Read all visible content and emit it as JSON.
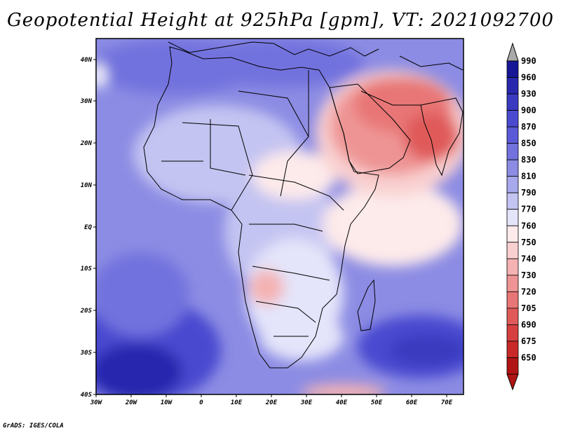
{
  "title": "Geopotential Height at 925hPa [gpm], VT: 2021092700",
  "credit": "GrADS: IGES/COLA",
  "lon_labels": [
    "30W",
    "20W",
    "10W",
    "0",
    "10E",
    "20E",
    "30E",
    "40E",
    "50E",
    "60E",
    "70E"
  ],
  "lat_labels": [
    "40N",
    "30N",
    "20N",
    "10N",
    "EQ",
    "10S",
    "20S",
    "30S",
    "40S"
  ],
  "legend": {
    "levels": [
      "990",
      "960",
      "930",
      "900",
      "870",
      "850",
      "830",
      "810",
      "790",
      "770",
      "760",
      "750",
      "740",
      "730",
      "720",
      "705",
      "690",
      "675",
      "650"
    ],
    "colors": [
      "#161696",
      "#2828ae",
      "#3a3ac0",
      "#4a4ad0",
      "#5a5ad8",
      "#7272de",
      "#8c8ce4",
      "#a8a8ec",
      "#c4c4f2",
      "#e4e4fa",
      "#fdeaea",
      "#f9d0d0",
      "#f4b2b2",
      "#ee9494",
      "#e87676",
      "#e05a5a",
      "#d64040",
      "#c82828",
      "#b01414"
    ]
  },
  "chart_data": {
    "type": "heatmap",
    "title": "Geopotential Height at 925hPa [gpm], VT: 2021092700",
    "variable": "Geopotential Height",
    "units": "gpm",
    "level": "925hPa",
    "valid_time": "2021092700",
    "lon_range": [
      -30,
      75
    ],
    "lat_range": [
      -40,
      45
    ],
    "colorbar_levels": [
      990,
      960,
      930,
      900,
      870,
      850,
      830,
      810,
      790,
      770,
      760,
      750,
      740,
      730,
      720,
      705,
      690,
      675,
      650
    ]
  }
}
